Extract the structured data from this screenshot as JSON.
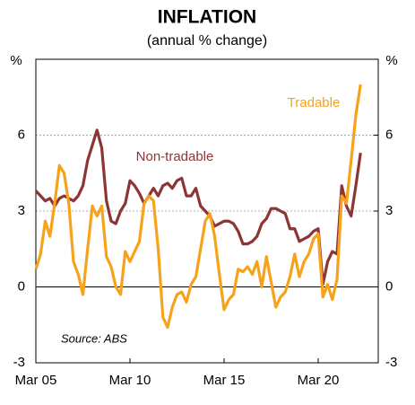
{
  "chart_data": {
    "type": "line",
    "title": "INFLATION",
    "subtitle": "(annual % change)",
    "ylabel": "%",
    "y2label": "%",
    "annotation": "Source: ABS",
    "categories": [
      "Mar 05",
      null,
      null,
      null,
      null,
      null,
      null,
      null,
      null,
      null,
      null,
      null,
      null,
      null,
      null,
      null,
      null,
      null,
      null,
      null,
      "Mar 10",
      null,
      null,
      null,
      null,
      null,
      null,
      null,
      null,
      null,
      null,
      null,
      null,
      null,
      null,
      null,
      null,
      null,
      null,
      null,
      "Mar 15",
      null,
      null,
      null,
      null,
      null,
      null,
      null,
      null,
      null,
      null,
      null,
      null,
      null,
      null,
      null,
      null,
      null,
      null,
      null,
      "Mar 20",
      null,
      null,
      null,
      null,
      null,
      null,
      null,
      null,
      null
    ],
    "series": [
      {
        "name": "Non-tradable",
        "color": "#8b3535",
        "values": [
          3.8,
          3.6,
          3.4,
          3.5,
          3.2,
          3.5,
          3.6,
          3.5,
          3.4,
          3.6,
          4.0,
          5.0,
          5.6,
          6.2,
          5.5,
          3.4,
          2.6,
          2.5,
          3.0,
          3.3,
          4.2,
          4.0,
          3.7,
          3.3,
          3.6,
          3.9,
          3.6,
          4.0,
          4.1,
          3.9,
          4.2,
          4.3,
          3.6,
          3.6,
          3.9,
          3.2,
          3.0,
          2.8,
          2.4,
          2.5,
          2.6,
          2.6,
          2.5,
          2.2,
          1.7,
          1.7,
          1.8,
          2.0,
          2.5,
          2.7,
          3.1,
          3.1,
          3.0,
          2.9,
          2.3,
          2.3,
          1.8,
          1.9,
          2.0,
          2.2,
          2.3,
          0.1,
          1.0,
          1.4,
          1.3,
          4.0,
          3.2,
          2.8,
          4.0,
          5.3
        ]
      },
      {
        "name": "Tradable",
        "color": "#f7a21b",
        "values": [
          0.7,
          1.3,
          2.6,
          2.0,
          3.3,
          4.8,
          4.5,
          3.3,
          1.0,
          0.5,
          -0.3,
          1.5,
          3.2,
          2.8,
          3.2,
          1.2,
          0.8,
          0.0,
          -0.3,
          1.4,
          1.0,
          1.4,
          1.8,
          3.3,
          3.6,
          3.4,
          1.5,
          -1.2,
          -1.6,
          -0.8,
          -0.3,
          -0.2,
          -0.6,
          0.1,
          0.4,
          1.5,
          2.6,
          2.9,
          2.0,
          0.5,
          -0.9,
          -0.5,
          -0.3,
          0.7,
          0.6,
          0.8,
          0.5,
          1.0,
          0.0,
          1.2,
          0.2,
          -0.8,
          -0.4,
          -0.2,
          0.4,
          1.3,
          0.4,
          1.0,
          1.3,
          1.9,
          2.1,
          -0.4,
          0.1,
          -0.5,
          0.3,
          3.6,
          3.3,
          5.0,
          6.8,
          8.0
        ]
      }
    ],
    "ylim": [
      -3,
      9
    ],
    "yticks": [
      -3,
      0,
      3,
      6
    ],
    "y2lim": [
      -3,
      9
    ],
    "y2ticks": [
      -3,
      0,
      3,
      6
    ],
    "grid": true
  }
}
